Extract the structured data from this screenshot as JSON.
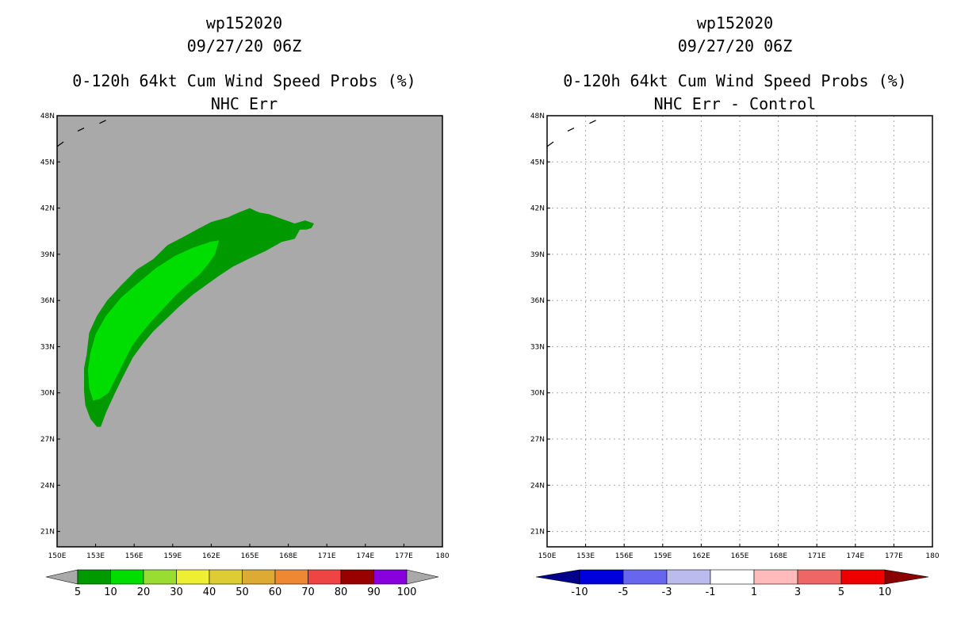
{
  "chart_data": [
    {
      "type": "heatmap",
      "storm_id": "wp152020",
      "datetime": "09/27/20 06Z",
      "title": "0-120h 64kt Cum Wind Speed Probs (%)",
      "subtitle": "NHC Err",
      "x_ticks": [
        "150E",
        "153E",
        "156E",
        "159E",
        "162E",
        "165E",
        "168E",
        "171E",
        "174E",
        "177E",
        "180"
      ],
      "y_ticks": [
        "48N",
        "45N",
        "42N",
        "39N",
        "36N",
        "33N",
        "30N",
        "27N",
        "24N",
        "21N"
      ],
      "xlim": [
        150,
        180
      ],
      "ylim": [
        20,
        48
      ],
      "background_color": "#a9a9a9",
      "contour_levels": [
        {
          "range": "5-10",
          "color": "#009900",
          "polygon": [
            [
              153.1,
              27.8
            ],
            [
              152.6,
              28.3
            ],
            [
              152.2,
              29.2
            ],
            [
              152.1,
              30.1
            ],
            [
              152.1,
              31.6
            ],
            [
              152.3,
              32.5
            ],
            [
              152.5,
              33.9
            ],
            [
              153.1,
              35.0
            ],
            [
              153.9,
              36.0
            ],
            [
              155.0,
              37.0
            ],
            [
              156.2,
              38.0
            ],
            [
              157.5,
              38.7
            ],
            [
              158.6,
              39.6
            ],
            [
              160.0,
              40.2
            ],
            [
              161.1,
              40.7
            ],
            [
              162.0,
              41.1
            ],
            [
              163.3,
              41.4
            ],
            [
              164.1,
              41.7
            ],
            [
              165.0,
              42.0
            ],
            [
              165.5,
              41.8
            ],
            [
              165.8,
              41.7
            ],
            [
              166.5,
              41.6
            ],
            [
              167.5,
              41.3
            ],
            [
              168.5,
              41.0
            ],
            [
              169.3,
              41.2
            ],
            [
              170.0,
              41.0
            ],
            [
              169.8,
              40.7
            ],
            [
              169.4,
              40.6
            ],
            [
              168.9,
              40.6
            ],
            [
              168.5,
              40.0
            ],
            [
              167.5,
              39.8
            ],
            [
              166.2,
              39.2
            ],
            [
              164.9,
              38.7
            ],
            [
              163.7,
              38.2
            ],
            [
              162.6,
              37.6
            ],
            [
              161.6,
              37.0
            ],
            [
              160.6,
              36.4
            ],
            [
              159.5,
              35.6
            ],
            [
              158.5,
              34.8
            ],
            [
              157.5,
              34.0
            ],
            [
              156.7,
              33.2
            ],
            [
              155.9,
              32.3
            ],
            [
              155.1,
              31.0
            ],
            [
              154.4,
              29.8
            ],
            [
              153.8,
              28.7
            ],
            [
              153.4,
              27.8
            ]
          ]
        },
        {
          "range": "10-20",
          "color": "#00dd00",
          "polygon": [
            [
              152.8,
              29.5
            ],
            [
              152.5,
              30.3
            ],
            [
              152.4,
              31.5
            ],
            [
              152.6,
              32.6
            ],
            [
              153.0,
              33.8
            ],
            [
              153.8,
              35.0
            ],
            [
              155.0,
              36.2
            ],
            [
              156.4,
              37.2
            ],
            [
              157.7,
              38.1
            ],
            [
              159.2,
              38.9
            ],
            [
              160.5,
              39.4
            ],
            [
              161.9,
              39.8
            ],
            [
              162.6,
              39.9
            ],
            [
              162.3,
              39.0
            ],
            [
              161.8,
              38.4
            ],
            [
              161.1,
              37.7
            ],
            [
              160.1,
              37.0
            ],
            [
              159.2,
              36.3
            ],
            [
              158.2,
              35.4
            ],
            [
              157.3,
              34.6
            ],
            [
              156.5,
              33.8
            ],
            [
              155.8,
              33.0
            ],
            [
              155.2,
              32.0
            ],
            [
              154.6,
              31.0
            ],
            [
              154.0,
              30.0
            ],
            [
              153.3,
              29.6
            ]
          ]
        },
        {
          "range": "20-30",
          "color": "#99dd33",
          "polygon": []
        },
        {
          "range": "30-40",
          "color": "#eeee33",
          "polygon": []
        },
        {
          "range": "40-50",
          "color": "#ddcc33",
          "polygon": []
        },
        {
          "range": "50-60",
          "color": "#ddaa33",
          "polygon": []
        },
        {
          "range": "60-70",
          "color": "#ee8833",
          "polygon": []
        },
        {
          "range": "70-80",
          "color": "#ee4444",
          "polygon": []
        },
        {
          "range": "80-90",
          "color": "#990000",
          "polygon": []
        },
        {
          "range": "90-100",
          "color": "#8800dd",
          "polygon": []
        }
      ],
      "colorbar": {
        "labels": [
          "5",
          "10",
          "20",
          "30",
          "40",
          "50",
          "60",
          "70",
          "80",
          "90",
          "100"
        ],
        "colors": [
          "#009900",
          "#00dd00",
          "#99dd33",
          "#eeee33",
          "#ddcc33",
          "#ddaa33",
          "#ee8833",
          "#ee4444",
          "#990000",
          "#8800dd"
        ],
        "under_color": "#a9a9a9",
        "over_color": "#a9a9a9"
      }
    },
    {
      "type": "heatmap",
      "storm_id": "wp152020",
      "datetime": "09/27/20 06Z",
      "title": "0-120h 64kt Cum Wind Speed Probs (%)",
      "subtitle": "NHC Err - Control",
      "x_ticks": [
        "150E",
        "153E",
        "156E",
        "159E",
        "162E",
        "165E",
        "168E",
        "171E",
        "174E",
        "177E",
        "180"
      ],
      "y_ticks": [
        "48N",
        "45N",
        "42N",
        "39N",
        "36N",
        "33N",
        "30N",
        "27N",
        "24N",
        "21N"
      ],
      "xlim": [
        150,
        180
      ],
      "ylim": [
        20,
        48
      ],
      "grid": true,
      "background_color": "#ffffff",
      "colorbar": {
        "labels": [
          "-10",
          "-5",
          "-3",
          "-1",
          "1",
          "3",
          "5",
          "10"
        ],
        "colors": [
          "#0000dd",
          "#6666ee",
          "#bbbbee",
          "#ffffff",
          "#ffbbbb",
          "#ee6666",
          "#ee0000"
        ],
        "under_color": "#00008b",
        "over_color": "#8b0000"
      }
    }
  ]
}
